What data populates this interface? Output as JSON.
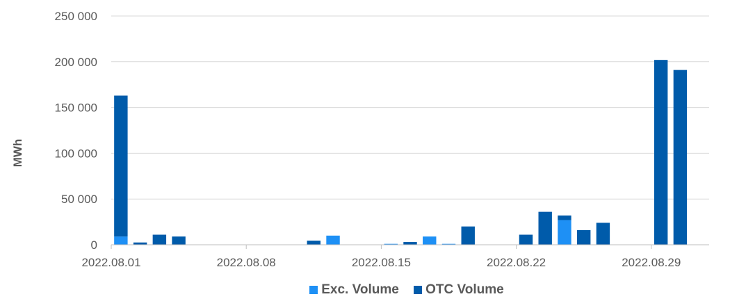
{
  "colors": {
    "exc": "#1E90F5",
    "otc": "#005BAA",
    "grid": "#D9D9D9",
    "axis": "#BFBFBF"
  },
  "chart_data": {
    "type": "bar",
    "stacked": true,
    "ylabel": "MWh",
    "ylim": [
      0,
      250000
    ],
    "yticks": [
      0,
      50000,
      100000,
      150000,
      200000,
      250000
    ],
    "ytick_labels": [
      "0",
      "50 000",
      "100 000",
      "150 000",
      "200 000",
      "250 000"
    ],
    "categories": [
      "2022.08.01",
      "2022.08.02",
      "2022.08.03",
      "2022.08.04",
      "2022.08.05",
      "2022.08.06",
      "2022.08.07",
      "2022.08.08",
      "2022.08.09",
      "2022.08.10",
      "2022.08.11",
      "2022.08.12",
      "2022.08.13",
      "2022.08.14",
      "2022.08.15",
      "2022.08.16",
      "2022.08.17",
      "2022.08.18",
      "2022.08.19",
      "2022.08.20",
      "2022.08.21",
      "2022.08.22",
      "2022.08.23",
      "2022.08.24",
      "2022.08.25",
      "2022.08.26",
      "2022.08.27",
      "2022.08.28",
      "2022.08.29",
      "2022.08.30",
      "2022.08.31"
    ],
    "xtick_labels": [
      "2022.08.01",
      "2022.08.08",
      "2022.08.15",
      "2022.08.22",
      "2022.08.29"
    ],
    "grid": true,
    "legend_position": "bottom",
    "series": [
      {
        "name": "Exc. Volume",
        "values": [
          9000,
          0,
          0,
          0,
          0,
          0,
          0,
          0,
          0,
          0,
          0,
          10000,
          0,
          0,
          1000,
          0,
          9000,
          1000,
          0,
          0,
          0,
          0,
          0,
          27000,
          0,
          0,
          0,
          0,
          0,
          0,
          0
        ]
      },
      {
        "name": "OTC Volume",
        "values": [
          154000,
          2500,
          11000,
          9000,
          0,
          0,
          0,
          0,
          0,
          0,
          4500,
          0,
          0,
          0,
          0,
          3000,
          0,
          0,
          20000,
          0,
          0,
          11000,
          36000,
          5000,
          16000,
          24000,
          0,
          0,
          202000,
          191000,
          0
        ]
      }
    ]
  }
}
